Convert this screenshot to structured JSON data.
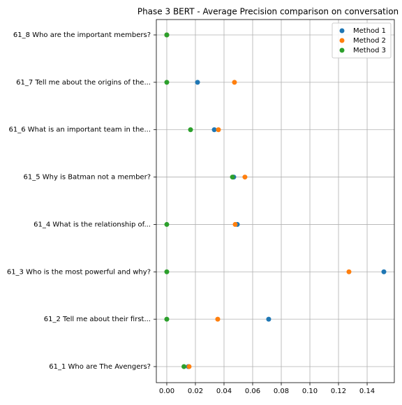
{
  "chart_data": {
    "type": "dot",
    "title": "Phase 3 BERT - Average Precision comparison on conversation",
    "categories": [
      "61_1 Who are The Avengers?",
      "61_2 Tell me about their first...",
      "61_3 Who is the most powerful and why?",
      "61_4 What is the relationship of...",
      "61_5 Why is Batman not a member?",
      "61_6 What is an important team in the...",
      "61_7 Tell me about the origins of the...",
      "61_8 Who are the important members?"
    ],
    "series": [
      {
        "name": "Method 1",
        "color": "#1f77b4",
        "values": [
          0.015,
          0.0712,
          0.1517,
          0.0493,
          0.0468,
          0.0332,
          0.0215,
          0
        ]
      },
      {
        "name": "Method 2",
        "color": "#ff7f0e",
        "values": [
          0.0156,
          0.0356,
          0.1273,
          0.0478,
          0.0546,
          0.0361,
          0.0473,
          0
        ]
      },
      {
        "name": "Method 3",
        "color": "#2ca02c",
        "values": [
          0.012,
          0,
          0,
          0,
          0.0459,
          0.0166,
          0,
          0
        ]
      }
    ],
    "xlim": [
      -0.0073,
      0.159
    ],
    "xticks": [
      {
        "value": 0,
        "label": "0.00"
      },
      0.02,
      0.04,
      0.06,
      0.08,
      {
        "value": 0.1,
        "label": "0.10"
      },
      0.12,
      0.14
    ],
    "grid": true,
    "legend": "upper right"
  }
}
